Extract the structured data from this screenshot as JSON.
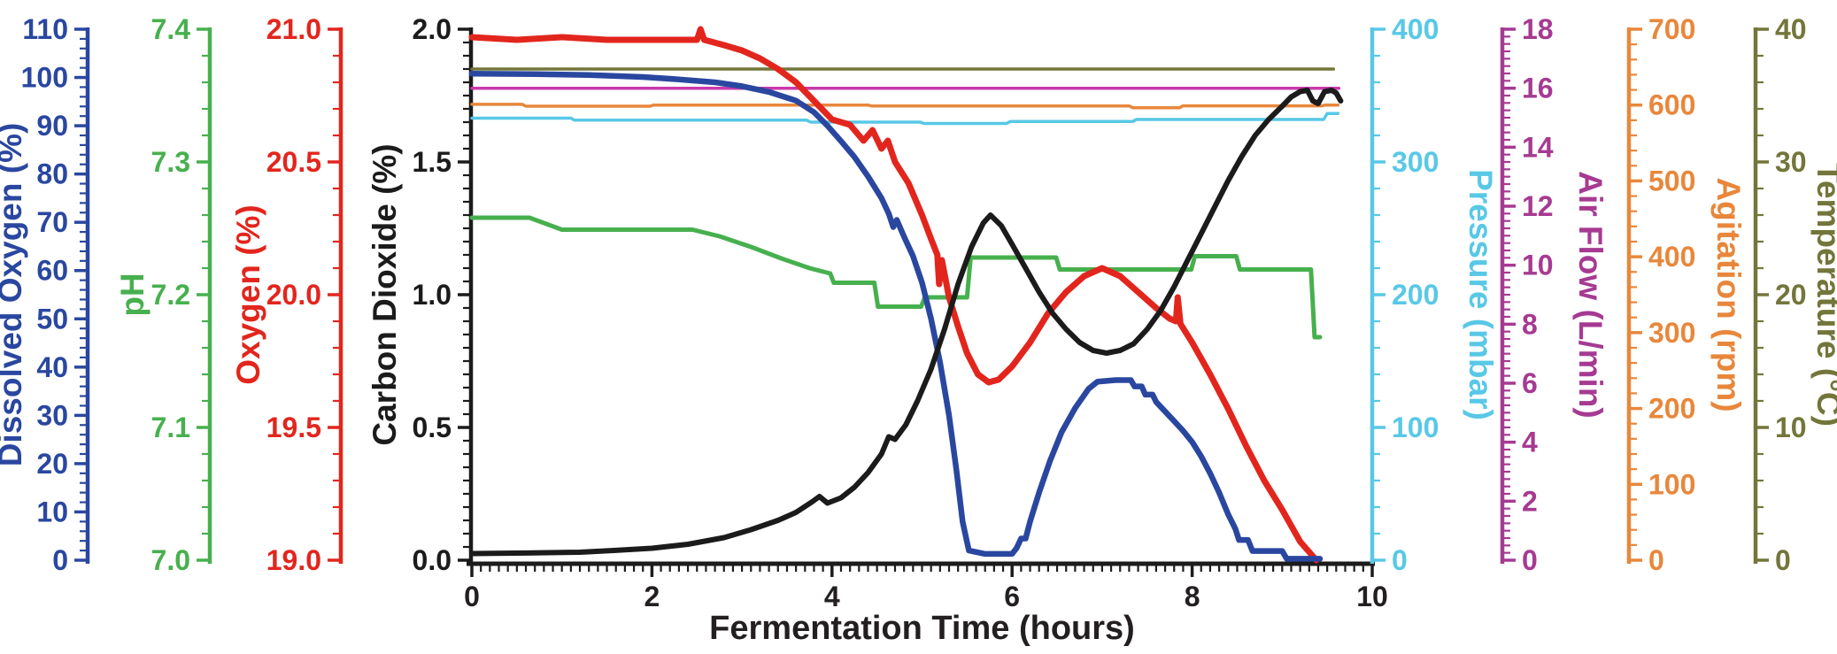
{
  "page": {
    "background": "#ffffff"
  },
  "chart_data": {
    "type": "line",
    "title": "",
    "xlabel": "Fermentation Time (hours)",
    "grid": false,
    "legend": "none",
    "x_axis": {
      "range": [
        0,
        10
      ],
      "major_ticks": [
        0,
        2,
        4,
        6,
        8,
        10
      ],
      "tick_labels": [
        "0",
        "2",
        "4",
        "6",
        "8",
        "10"
      ],
      "minor_step": 0.1,
      "color": "#1c1c1c",
      "label_color": "#231f20"
    },
    "y_axes": [
      {
        "id": "dissolved_oxygen",
        "label": "Dissolved Oxygen (%)",
        "side": "left",
        "color": "#2a47a0",
        "range": [
          0,
          110
        ],
        "major_ticks": [
          0,
          10,
          20,
          30,
          40,
          50,
          60,
          70,
          80,
          90,
          100,
          110
        ],
        "tick_labels": [
          "0",
          "10",
          "20",
          "30",
          "40",
          "50",
          "60",
          "70",
          "80",
          "90",
          "100",
          "110"
        ],
        "minor_step": 2
      },
      {
        "id": "ph",
        "label": "pH",
        "side": "left",
        "color": "#47b04e",
        "range": [
          7.0,
          7.4
        ],
        "major_ticks": [
          7.0,
          7.1,
          7.2,
          7.3,
          7.4
        ],
        "tick_labels": [
          "7.0",
          "7.1",
          "7.2",
          "7.3",
          "7.4"
        ],
        "minor_step": 0.02
      },
      {
        "id": "oxygen",
        "label": "Oxygen (%)",
        "side": "left",
        "color": "#e2261d",
        "range": [
          19.0,
          21.0
        ],
        "major_ticks": [
          19.0,
          19.5,
          20.0,
          20.5,
          21.0
        ],
        "tick_labels": [
          "19.0",
          "19.5",
          "20.0",
          "20.5",
          "21.0"
        ],
        "minor_step": 0.1
      },
      {
        "id": "co2",
        "label": "Carbon Dioxide (%)",
        "side": "left",
        "color": "#1b1b1b",
        "range": [
          0,
          2.0
        ],
        "major_ticks": [
          0,
          0.5,
          1.0,
          1.5,
          2.0
        ],
        "tick_labels": [
          "0.0",
          "0.5",
          "1.0",
          "1.5",
          "2.0"
        ],
        "minor_step": 0.05
      },
      {
        "id": "pressure",
        "label": "Pressure (mbar)",
        "side": "right",
        "color": "#58c8e6",
        "range": [
          0,
          400
        ],
        "major_ticks": [
          0,
          100,
          200,
          300,
          400
        ],
        "tick_labels": [
          "0",
          "100",
          "200",
          "300",
          "400"
        ],
        "minor_step": 20
      },
      {
        "id": "air_flow",
        "label": "Air Flow (L/min)",
        "side": "right",
        "color": "#a63a92",
        "range": [
          0,
          18
        ],
        "major_ticks": [
          0,
          2,
          4,
          6,
          8,
          10,
          12,
          14,
          16,
          18
        ],
        "tick_labels": [
          "0",
          "2",
          "4",
          "6",
          "8",
          "10",
          "12",
          "14",
          "16",
          "18"
        ],
        "minor_step": 0.25
      },
      {
        "id": "agitation",
        "label": "Agitation (rpm)",
        "side": "right",
        "color": "#e8873b",
        "range": [
          0,
          700
        ],
        "major_ticks": [
          0,
          100,
          200,
          300,
          400,
          500,
          600,
          700
        ],
        "tick_labels": [
          "0",
          "100",
          "200",
          "300",
          "400",
          "500",
          "600",
          "700"
        ],
        "minor_step": 20
      },
      {
        "id": "temperature",
        "label": "Temperature (°C)",
        "side": "right",
        "color": "#73763a",
        "range": [
          0,
          40
        ],
        "major_ticks": [
          0,
          10,
          20,
          30,
          40
        ],
        "tick_labels": [
          "0",
          "10",
          "20",
          "30",
          "40"
        ],
        "minor_step": 2
      }
    ],
    "series": [
      {
        "id": "temperature",
        "name": "Temperature",
        "axis": "temperature",
        "color": "#73763a",
        "width": 3.5,
        "points": [
          [
            0,
            37
          ],
          [
            9.57,
            37
          ]
        ]
      },
      {
        "id": "air_flow",
        "name": "Air Flow",
        "axis": "air_flow",
        "color": "#c93aab",
        "width": 3.5,
        "points": [
          [
            0,
            16
          ],
          [
            9.63,
            16
          ]
        ]
      },
      {
        "id": "agitation",
        "name": "Agitation",
        "axis": "agitation",
        "color": "#e8873b",
        "width": 3.5,
        "points": [
          [
            0,
            601
          ],
          [
            0.56,
            601
          ],
          [
            0.6,
            598.5
          ],
          [
            1.98,
            598.5
          ],
          [
            2.02,
            600
          ],
          [
            4.4,
            600
          ],
          [
            4.44,
            598.8
          ],
          [
            7.3,
            598.8
          ],
          [
            7.34,
            596.5
          ],
          [
            7.86,
            596.5
          ],
          [
            7.9,
            599
          ],
          [
            9.44,
            599
          ],
          [
            9.48,
            600
          ],
          [
            9.62,
            600
          ]
        ]
      },
      {
        "id": "pressure",
        "name": "Pressure",
        "axis": "pressure",
        "color": "#58c8e6",
        "width": 3.5,
        "points": [
          [
            0,
            333
          ],
          [
            1.1,
            333
          ],
          [
            1.14,
            331.5
          ],
          [
            3.72,
            331.5
          ],
          [
            3.76,
            330
          ],
          [
            4.98,
            330
          ],
          [
            5.02,
            329
          ],
          [
            5.94,
            329
          ],
          [
            5.98,
            330.5
          ],
          [
            7.34,
            330.5
          ],
          [
            7.38,
            332
          ],
          [
            9.46,
            332
          ],
          [
            9.5,
            336.5
          ],
          [
            9.62,
            336.5
          ]
        ]
      },
      {
        "id": "ph",
        "name": "pH",
        "axis": "ph",
        "color": "#47b04e",
        "width": 5,
        "points": [
          [
            0,
            7.258
          ],
          [
            0.64,
            7.258
          ],
          [
            1.0,
            7.249
          ],
          [
            2.45,
            7.249
          ],
          [
            2.75,
            7.244
          ],
          [
            3.1,
            7.236
          ],
          [
            3.45,
            7.227
          ],
          [
            3.75,
            7.22
          ],
          [
            3.98,
            7.216
          ],
          [
            4.02,
            7.209
          ],
          [
            4.47,
            7.209
          ],
          [
            4.51,
            7.191
          ],
          [
            4.99,
            7.191
          ],
          [
            5.03,
            7.198
          ],
          [
            5.5,
            7.198
          ],
          [
            5.54,
            7.228
          ],
          [
            6.49,
            7.228
          ],
          [
            6.53,
            7.219
          ],
          [
            7.99,
            7.219
          ],
          [
            8.03,
            7.229
          ],
          [
            8.49,
            7.229
          ],
          [
            8.53,
            7.219
          ],
          [
            9.32,
            7.219
          ],
          [
            9.36,
            7.168
          ],
          [
            9.42,
            7.168
          ]
        ]
      },
      {
        "id": "oxygen",
        "name": "Oxygen",
        "axis": "oxygen",
        "color": "#e2261d",
        "width": 7,
        "points": [
          [
            0,
            20.97
          ],
          [
            0.5,
            20.96
          ],
          [
            1.0,
            20.97
          ],
          [
            1.5,
            20.96
          ],
          [
            2.0,
            20.96
          ],
          [
            2.5,
            20.96
          ],
          [
            2.54,
            21.0
          ],
          [
            2.58,
            20.96
          ],
          [
            2.8,
            20.94
          ],
          [
            3.0,
            20.92
          ],
          [
            3.2,
            20.89
          ],
          [
            3.4,
            20.85
          ],
          [
            3.6,
            20.8
          ],
          [
            3.8,
            20.73
          ],
          [
            4.0,
            20.66
          ],
          [
            4.2,
            20.64
          ],
          [
            4.35,
            20.58
          ],
          [
            4.45,
            20.62
          ],
          [
            4.55,
            20.55
          ],
          [
            4.62,
            20.58
          ],
          [
            4.7,
            20.5
          ],
          [
            4.85,
            20.42
          ],
          [
            5.0,
            20.3
          ],
          [
            5.1,
            20.21
          ],
          [
            5.17,
            20.15
          ],
          [
            5.19,
            20.04
          ],
          [
            5.22,
            20.13
          ],
          [
            5.3,
            19.99
          ],
          [
            5.4,
            19.88
          ],
          [
            5.5,
            19.78
          ],
          [
            5.62,
            19.7
          ],
          [
            5.74,
            19.67
          ],
          [
            5.85,
            19.68
          ],
          [
            6.0,
            19.73
          ],
          [
            6.2,
            19.82
          ],
          [
            6.4,
            19.93
          ],
          [
            6.6,
            20.01
          ],
          [
            6.8,
            20.07
          ],
          [
            7.0,
            20.1
          ],
          [
            7.2,
            20.07
          ],
          [
            7.4,
            20.01
          ],
          [
            7.6,
            19.95
          ],
          [
            7.75,
            19.91
          ],
          [
            7.82,
            19.9
          ],
          [
            7.84,
            19.99
          ],
          [
            7.87,
            19.89
          ],
          [
            8.0,
            19.82
          ],
          [
            8.2,
            19.7
          ],
          [
            8.4,
            19.57
          ],
          [
            8.6,
            19.43
          ],
          [
            8.8,
            19.3
          ],
          [
            9.0,
            19.19
          ],
          [
            9.2,
            19.07
          ],
          [
            9.38,
            19.0
          ]
        ]
      },
      {
        "id": "dissolved_oxygen",
        "name": "Dissolved Oxygen",
        "axis": "dissolved_oxygen",
        "color": "#2a47a0",
        "width": 6.5,
        "points": [
          [
            0,
            100.8
          ],
          [
            0.7,
            100.7
          ],
          [
            1.3,
            100.5
          ],
          [
            1.9,
            100.1
          ],
          [
            2.3,
            99.6
          ],
          [
            2.7,
            99.0
          ],
          [
            3.0,
            98.2
          ],
          [
            3.3,
            97.0
          ],
          [
            3.6,
            95.2
          ],
          [
            3.8,
            92.8
          ],
          [
            3.95,
            90.0
          ],
          [
            4.1,
            86.8
          ],
          [
            4.25,
            83.5
          ],
          [
            4.4,
            79.5
          ],
          [
            4.55,
            75.0
          ],
          [
            4.63,
            71.8
          ],
          [
            4.68,
            69.0
          ],
          [
            4.72,
            70.5
          ],
          [
            4.8,
            67.0
          ],
          [
            4.9,
            63.0
          ],
          [
            5.0,
            57.5
          ],
          [
            5.1,
            50.0
          ],
          [
            5.2,
            41.0
          ],
          [
            5.3,
            30.0
          ],
          [
            5.38,
            19.0
          ],
          [
            5.45,
            8.0
          ],
          [
            5.52,
            2.0
          ],
          [
            5.7,
            1.3
          ],
          [
            6.0,
            1.3
          ],
          [
            6.05,
            2.5
          ],
          [
            6.1,
            4.5
          ],
          [
            6.15,
            4.5
          ],
          [
            6.2,
            8.0
          ],
          [
            6.3,
            14.0
          ],
          [
            6.42,
            20.5
          ],
          [
            6.55,
            26.5
          ],
          [
            6.7,
            31.5
          ],
          [
            6.85,
            35.5
          ],
          [
            6.95,
            37.0
          ],
          [
            7.15,
            37.3
          ],
          [
            7.32,
            37.3
          ],
          [
            7.36,
            36.0
          ],
          [
            7.44,
            36.0
          ],
          [
            7.48,
            34.3
          ],
          [
            7.56,
            34.3
          ],
          [
            7.6,
            32.8
          ],
          [
            7.7,
            30.8
          ],
          [
            7.8,
            28.8
          ],
          [
            7.9,
            26.8
          ],
          [
            8.0,
            24.5
          ],
          [
            8.1,
            21.5
          ],
          [
            8.2,
            18.0
          ],
          [
            8.3,
            14.0
          ],
          [
            8.4,
            9.5
          ],
          [
            8.48,
            6.5
          ],
          [
            8.52,
            4.2
          ],
          [
            8.62,
            4.2
          ],
          [
            8.67,
            1.9
          ],
          [
            9.0,
            1.9
          ],
          [
            9.05,
            0.3
          ],
          [
            9.42,
            0.3
          ]
        ]
      },
      {
        "id": "co2",
        "name": "Carbon Dioxide",
        "axis": "co2",
        "color": "#1b1b1b",
        "width": 6,
        "points": [
          [
            0,
            0.025
          ],
          [
            0.6,
            0.027
          ],
          [
            1.2,
            0.03
          ],
          [
            1.6,
            0.037
          ],
          [
            2.0,
            0.045
          ],
          [
            2.4,
            0.06
          ],
          [
            2.8,
            0.085
          ],
          [
            3.1,
            0.115
          ],
          [
            3.4,
            0.15
          ],
          [
            3.6,
            0.18
          ],
          [
            3.78,
            0.22
          ],
          [
            3.86,
            0.24
          ],
          [
            3.95,
            0.215
          ],
          [
            4.1,
            0.235
          ],
          [
            4.25,
            0.275
          ],
          [
            4.4,
            0.33
          ],
          [
            4.55,
            0.4
          ],
          [
            4.63,
            0.465
          ],
          [
            4.7,
            0.455
          ],
          [
            4.82,
            0.51
          ],
          [
            4.95,
            0.6
          ],
          [
            5.1,
            0.72
          ],
          [
            5.25,
            0.87
          ],
          [
            5.4,
            1.04
          ],
          [
            5.55,
            1.18
          ],
          [
            5.68,
            1.27
          ],
          [
            5.76,
            1.3
          ],
          [
            5.88,
            1.26
          ],
          [
            6.0,
            1.19
          ],
          [
            6.15,
            1.1
          ],
          [
            6.3,
            1.01
          ],
          [
            6.45,
            0.93
          ],
          [
            6.6,
            0.87
          ],
          [
            6.75,
            0.82
          ],
          [
            6.9,
            0.79
          ],
          [
            7.05,
            0.78
          ],
          [
            7.2,
            0.79
          ],
          [
            7.35,
            0.815
          ],
          [
            7.5,
            0.87
          ],
          [
            7.65,
            0.94
          ],
          [
            7.8,
            1.03
          ],
          [
            7.95,
            1.13
          ],
          [
            8.1,
            1.23
          ],
          [
            8.25,
            1.33
          ],
          [
            8.4,
            1.43
          ],
          [
            8.55,
            1.52
          ],
          [
            8.7,
            1.6
          ],
          [
            8.85,
            1.66
          ],
          [
            9.0,
            1.71
          ],
          [
            9.1,
            1.745
          ],
          [
            9.2,
            1.765
          ],
          [
            9.28,
            1.77
          ],
          [
            9.34,
            1.73
          ],
          [
            9.4,
            1.72
          ],
          [
            9.47,
            1.765
          ],
          [
            9.55,
            1.77
          ],
          [
            9.6,
            1.76
          ],
          [
            9.65,
            1.73
          ]
        ]
      }
    ]
  }
}
